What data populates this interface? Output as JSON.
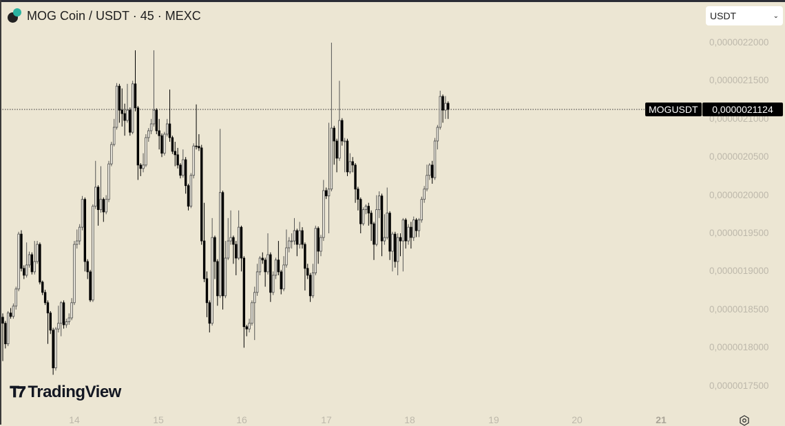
{
  "header": {
    "title": "MOG Coin / USDT · 45 · MEXC",
    "logo": "mog-coin-logo"
  },
  "currency_select": {
    "value": "USDT"
  },
  "price_line": {
    "symbol": "MOGUSDT",
    "price_label": "0,0000021124",
    "price": 2.1124e-06
  },
  "branding": {
    "logo_text": "TradingView"
  },
  "colors": {
    "background": "#ece6d3",
    "down_candle": "#000000",
    "up_candle_fill": "#f4f1e6",
    "axis_text": "#bdb8ab"
  },
  "chart_data": {
    "type": "candlestick",
    "interval": "45",
    "ylim": [
      1.73e-06,
      2.22e-06
    ],
    "grid": false,
    "y_ticks": [
      {
        "value": 2.2e-06,
        "label": "0,0000022000"
      },
      {
        "value": 2.15e-06,
        "label": "0,0000021500"
      },
      {
        "value": 2.1e-06,
        "label": "0,0000021000"
      },
      {
        "value": 2.05e-06,
        "label": "0,0000020500"
      },
      {
        "value": 2e-06,
        "label": "0,0000020000"
      },
      {
        "value": 1.95e-06,
        "label": "0,0000019500"
      },
      {
        "value": 1.9e-06,
        "label": "0,0000019000"
      },
      {
        "value": 1.85e-06,
        "label": "0,0000018500"
      },
      {
        "value": 1.8e-06,
        "label": "0,0000018000"
      },
      {
        "value": 1.75e-06,
        "label": "0,0000017500"
      }
    ],
    "x_ticks": [
      "14",
      "15",
      "16",
      "17",
      "18",
      "19",
      "20",
      "21"
    ],
    "first_open": 1.84e-06,
    "close": [
      1.832e-06,
      1.805e-06,
      1.8455e-06,
      1.841e-06,
      1.8545e-06,
      1.877e-06,
      1.949e-06,
      1.904e-06,
      1.895e-06,
      1.9085e-06,
      1.922e-06,
      1.8995e-06,
      1.913e-06,
      1.9355e-06,
      1.886e-06,
      1.8725e-06,
      1.859e-06,
      1.8455e-06,
      1.823e-06,
      1.7735e-06,
      1.8245e-06,
      1.832e-06,
      1.859e-06,
      1.83e-06,
      1.834e-06,
      1.839e-06,
      1.859e-06,
      1.9355e-06,
      1.94e-06,
      1.958e-06,
      1.9945e-06,
      1.913e-06,
      1.8995e-06,
      1.8625e-06,
      1.9855e-06,
      2.0105e-06,
      1.981e-06,
      1.9945e-06,
      1.978e-06,
      1.9945e-06,
      2.041e-06,
      2.0665e-06,
      2.089e-06,
      2.143e-06,
      2.1115e-06,
      2.107e-06,
      2.098e-06,
      2.1115e-06,
      2.0825e-06,
      2.146e-06,
      2.1145e-06,
      2.0395e-06,
      2.035e-06,
      2.0395e-06,
      2.0755e-06,
      2.0845e-06,
      2.0935e-06,
      2.1115e-06,
      2.0845e-06,
      2.078e-06,
      2.055e-06,
      2.08e-06,
      2.0935e-06,
      2.0755e-06,
      2.0575e-06,
      2.053e-06,
      2.0395e-06,
      2.026e-06,
      2.0465e-06,
      2.0125e-06,
      1.9855e-06,
      2.026e-06,
      2.0645e-06,
      2.064e-06,
      2.062e-06,
      1.94e-06,
      1.8905e-06,
      1.859e-06,
      1.832e-06,
      1.9445e-06,
      1.913e-06,
      1.868e-06,
      2.0035e-06,
      1.868e-06,
      1.9175e-06,
      1.94e-06,
      1.9445e-06,
      1.9355e-06,
      1.9175e-06,
      1.958e-06,
      1.9175e-06,
      1.8275e-06,
      1.8245e-06,
      1.832e-06,
      1.859e-06,
      1.8725e-06,
      1.8995e-06,
      1.9175e-06,
      1.915e-06,
      1.8995e-06,
      1.922e-06,
      1.8725e-06,
      1.895e-06,
      1.915e-06,
      1.8995e-06,
      1.877e-06,
      1.9085e-06,
      1.931e-06,
      1.94e-06,
      1.94e-06,
      1.9535e-06,
      1.9355e-06,
      1.9535e-06,
      1.9355e-06,
      1.904e-06,
      1.895e-06,
      1.868e-06,
      1.898e-06,
      1.9565e-06,
      1.9265e-06,
      1.9445e-06,
      2.006e-06,
      1.999e-06,
      2.008e-06,
      2.088e-06,
      2.071e-06,
      2.0485e-06,
      2.098e-06,
      2.071e-06,
      2.071e-06,
      2.0305e-06,
      2.044e-06,
      2.0395e-06,
      2.008e-06,
      1.9945e-06,
      1.9625e-06,
      1.981e-06,
      1.9855e-06,
      1.9765e-06,
      1.9625e-06,
      1.9355e-06,
      1.981e-06,
      1.999e-06,
      1.94e-06,
      1.9445e-06,
      1.9765e-06,
      1.9265e-06,
      1.949e-06,
      1.913e-06,
      1.9445e-06,
      1.94e-06,
      1.9675e-06,
      1.94e-06,
      1.958e-06,
      1.9445e-06,
      1.9675e-06,
      1.9535e-06,
      1.9675e-06,
      1.9945e-06,
      2.008e-06,
      2.026e-06,
      2.0395e-06,
      2.023e-06,
      2.071e-06,
      2.089e-06,
      2.1295e-06,
      2.1115e-06,
      2.1205e-06,
      2.1124e-06
    ],
    "high": [
      1.845e-06,
      1.835e-06,
      1.848e-06,
      1.852e-06,
      1.858e-06,
      1.88e-06,
      1.952e-06,
      1.954e-06,
      1.908e-06,
      1.938e-06,
      1.926e-06,
      1.925e-06,
      1.94e-06,
      1.94e-06,
      1.938e-06,
      1.888e-06,
      1.876e-06,
      1.862e-06,
      1.848e-06,
      1.826e-06,
      1.827e-06,
      1.855e-06,
      1.861e-06,
      1.862e-06,
      1.838e-06,
      1.845e-06,
      1.865e-06,
      1.94e-06,
      1.955e-06,
      1.962e-06,
      1.999e-06,
      1.997e-06,
      1.916e-06,
      1.902e-06,
      1.988e-06,
      2.045e-06,
      2.013e-06,
      2.038e-06,
      1.997e-06,
      2e-06,
      2.045e-06,
      2.07e-06,
      2.1e-06,
      2.147e-06,
      2.146e-06,
      2.14e-06,
      2.12e-06,
      2.146e-06,
      2.115e-06,
      2.15e-06,
      2.19e-06,
      2.117e-06,
      2.042e-06,
      2.055e-06,
      2.08e-06,
      2.088e-06,
      2.1e-06,
      2.19e-06,
      2.114e-06,
      2.1e-06,
      2.081e-06,
      2.083e-06,
      2.1e-06,
      2.1385e-06,
      2.078e-06,
      2.07e-06,
      2.062e-06,
      2.042e-06,
      2.06e-06,
      2.05e-06,
      2.015e-06,
      2.029e-06,
      2.068e-06,
      2.119e-06,
      2.08e-06,
      2.066e-06,
      1.99e-06,
      1.9e-06,
      1.862e-06,
      1.97e-06,
      1.947e-06,
      1.916e-06,
      2.087e-06,
      2.006e-06,
      1.94e-06,
      1.97e-06,
      1.98e-06,
      1.947e-06,
      1.94e-06,
      1.98e-06,
      1.96e-06,
      1.92e-06,
      1.83e-06,
      1.838e-06,
      1.862e-06,
      1.88e-06,
      1.91e-06,
      1.92e-06,
      1.925e-06,
      1.918e-06,
      1.95e-06,
      1.925e-06,
      1.9e-06,
      1.918e-06,
      1.94e-06,
      1.902e-06,
      1.92e-06,
      1.955e-06,
      1.945e-06,
      1.95e-06,
      1.97e-06,
      1.956e-06,
      1.965e-06,
      1.958e-06,
      1.938e-06,
      1.91e-06,
      1.898e-06,
      1.91e-06,
      1.96e-06,
      1.959e-06,
      1.948e-06,
      2.02e-06,
      2.01e-06,
      2.095e-06,
      2.2e-06,
      2.091e-06,
      2.074e-06,
      2.15e-06,
      2.101e-06,
      2.075e-06,
      2.074e-06,
      2.055e-06,
      2.05e-06,
      2.042e-06,
      2.011e-06,
      1.997e-06,
      1.984e-06,
      1.988e-06,
      1.99e-06,
      1.98e-06,
      1.965e-06,
      2e-06,
      2.005e-06,
      2.002e-06,
      1.975e-06,
      2.01e-06,
      1.979e-06,
      1.952e-06,
      1.952e-06,
      1.95e-06,
      1.95e-06,
      1.97e-06,
      1.97e-06,
      1.962e-06,
      1.965e-06,
      1.972e-06,
      1.97e-06,
      1.97e-06,
      1.998e-06,
      2.012e-06,
      2.04e-06,
      2.042e-06,
      2.045e-06,
      2.075e-06,
      2.092e-06,
      2.137e-06,
      2.132e-06,
      2.13e-06,
      2.123e-06
    ],
    "low": [
      1.7825e-06,
      1.799e-06,
      1.802e-06,
      1.838e-06,
      1.838e-06,
      1.85e-06,
      1.874e-06,
      1.9e-06,
      1.89e-06,
      1.892e-06,
      1.905e-06,
      1.896e-06,
      1.896e-06,
      1.91e-06,
      1.883e-06,
      1.869e-06,
      1.856e-06,
      1.805e-06,
      1.818e-06,
      1.7645e-06,
      1.77e-06,
      1.82e-06,
      1.815e-06,
      1.825e-06,
      1.826e-06,
      1.83e-06,
      1.836e-06,
      1.856e-06,
      1.93e-06,
      1.935e-06,
      1.954e-06,
      1.9e-06,
      1.89e-06,
      1.86e-06,
      1.86e-06,
      1.982e-06,
      1.96e-06,
      1.977e-06,
      1.965e-06,
      1.975e-06,
      1.991e-06,
      2.038e-06,
      2.064e-06,
      2.086e-06,
      2.095e-06,
      2.09e-06,
      2.078e-06,
      2.095e-06,
      2.078e-06,
      2.08e-06,
      2.11e-06,
      2.02e-06,
      2.025e-06,
      2.03e-06,
      2.037e-06,
      2.07e-06,
      2.08e-06,
      2.09e-06,
      2.08e-06,
      2.06e-06,
      2.05e-06,
      2.052e-06,
      2.077e-06,
      2.07e-06,
      2.054e-06,
      2.038e-06,
      2.035e-06,
      2.022e-06,
      2.023e-06,
      2.002e-06,
      1.98e-06,
      1.983e-06,
      2.022e-06,
      2.06e-06,
      2.058e-06,
      1.935e-06,
      1.886e-06,
      1.84e-06,
      1.82e-06,
      1.829e-06,
      1.89e-06,
      1.855e-06,
      1.865e-06,
      1.85e-06,
      1.865e-06,
      1.915e-06,
      1.935e-06,
      1.91e-06,
      1.895e-06,
      1.915e-06,
      1.9e-06,
      1.8e-06,
      1.815e-06,
      1.82e-06,
      1.829e-06,
      1.81e-06,
      1.868e-06,
      1.895e-06,
      1.91e-06,
      1.88e-06,
      1.896e-06,
      1.86e-06,
      1.869e-06,
      1.89e-06,
      1.895e-06,
      1.87e-06,
      1.874e-06,
      1.905e-06,
      1.925e-06,
      1.93e-06,
      1.935e-06,
      1.92e-06,
      1.93e-06,
      1.93e-06,
      1.875e-06,
      1.89e-06,
      1.86e-06,
      1.865e-06,
      1.895e-06,
      1.91e-06,
      1.92e-06,
      1.94e-06,
      1.995e-06,
      1.95e-06,
      2.005e-06,
      2.04e-06,
      2.03e-06,
      2.045e-06,
      2.065e-06,
      2.03e-06,
      2.025e-06,
      2.028e-06,
      2.03e-06,
      1.99e-06,
      1.98e-06,
      1.95e-06,
      1.96e-06,
      1.975e-06,
      1.96e-06,
      1.94e-06,
      1.915e-06,
      1.933e-06,
      1.97e-06,
      1.92e-06,
      1.935e-06,
      1.942e-06,
      1.915e-06,
      1.9e-06,
      1.905e-06,
      1.895e-06,
      1.92e-06,
      1.9e-06,
      1.93e-06,
      1.935e-06,
      1.93e-06,
      1.94e-06,
      1.945e-06,
      1.945e-06,
      1.964e-06,
      1.99e-06,
      2.005e-06,
      2.02e-06,
      2.015e-06,
      2.02e-06,
      2.06e-06,
      2.086e-06,
      2.095e-06,
      2.1e-06,
      2.1e-06
    ]
  }
}
